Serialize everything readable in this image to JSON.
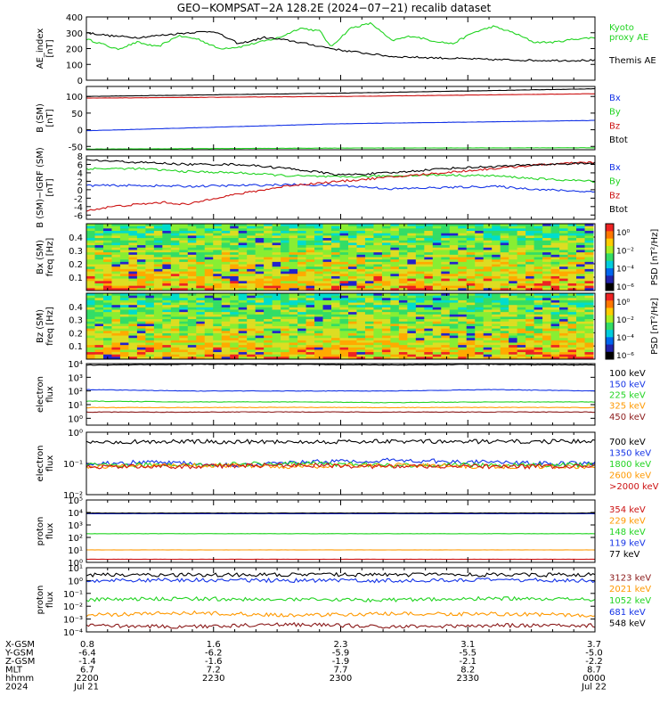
{
  "title": "GEO−KOMPSAT−2A 128.2E (2024−07−21) recalib dataset",
  "colors": {
    "black": "#000000",
    "green": "#22d422",
    "blue": "#1433e6",
    "red": "#cc1111",
    "orange": "#ff9900",
    "darkred": "#8b1a1a",
    "bright_green": "#33dd33"
  },
  "chart_data": [
    {
      "type": "line",
      "id": "ae",
      "ylabel": [
        "AE_index",
        "[nT]"
      ],
      "ylim": [
        0,
        400
      ],
      "yticks": [
        {
          "v": 0,
          "t": "0"
        },
        {
          "v": 100,
          "t": "100"
        },
        {
          "v": 200,
          "t": "200"
        },
        {
          "v": 300,
          "t": "300"
        },
        {
          "v": 400,
          "t": "400"
        }
      ],
      "series": [
        {
          "name": "Kyoto",
          "label_lines": [
            "Kyoto",
            "proxy AE"
          ],
          "color": "#22d422",
          "x": [
            0,
            0.03,
            0.06,
            0.1,
            0.14,
            0.18,
            0.22,
            0.26,
            0.3,
            0.34,
            0.38,
            0.42,
            0.46,
            0.48,
            0.52,
            0.56,
            0.6,
            0.64,
            0.68,
            0.72,
            0.76,
            0.8,
            0.84,
            0.88,
            0.92,
            0.96,
            1.0
          ],
          "y": [
            260,
            230,
            195,
            240,
            210,
            280,
            260,
            200,
            210,
            240,
            270,
            330,
            310,
            210,
            330,
            360,
            250,
            280,
            250,
            230,
            300,
            340,
            300,
            240,
            240,
            260,
            270
          ]
        },
        {
          "name": "Themis AE",
          "label_lines": [
            "Themis AE"
          ],
          "color": "#000000",
          "x": [
            0,
            0.05,
            0.1,
            0.2,
            0.25,
            0.3,
            0.35,
            0.4,
            0.45,
            0.5,
            0.55,
            0.6,
            0.7,
            0.8,
            0.9,
            1.0
          ],
          "y": [
            300,
            280,
            270,
            300,
            310,
            230,
            270,
            250,
            220,
            190,
            170,
            150,
            140,
            130,
            125,
            125
          ]
        }
      ]
    },
    {
      "type": "line",
      "id": "bsm",
      "ylabel": [
        "B (SM)",
        "[nT]"
      ],
      "ylim": [
        -60,
        130
      ],
      "yticks": [
        {
          "v": -50,
          "t": "-50"
        },
        {
          "v": 0,
          "t": "0"
        },
        {
          "v": 50,
          "t": "50"
        },
        {
          "v": 100,
          "t": "100"
        }
      ],
      "series": [
        {
          "name": "Bx",
          "color": "#1433e6",
          "x": [
            0,
            0.5,
            1.0
          ],
          "y": [
            -3,
            18,
            28
          ]
        },
        {
          "name": "By",
          "color": "#22d422",
          "x": [
            0,
            0.5,
            1.0
          ],
          "y": [
            -58,
            -55,
            -54
          ]
        },
        {
          "name": "Bz",
          "color": "#cc1111",
          "x": [
            0,
            0.5,
            1.0
          ],
          "y": [
            95,
            100,
            108
          ]
        },
        {
          "name": "Btot",
          "color": "#000000",
          "x": [
            0,
            0.5,
            1.0
          ],
          "y": [
            100,
            110,
            123
          ]
        }
      ]
    },
    {
      "type": "line",
      "id": "bigrf",
      "ylabel": [
        "B (SM)−IGRF (SM)",
        "[nT]"
      ],
      "ylim": [
        -7,
        8
      ],
      "yticks": [
        {
          "v": -6,
          "t": "-6"
        },
        {
          "v": -4,
          "t": "-4"
        },
        {
          "v": -2,
          "t": "-2"
        },
        {
          "v": 0,
          "t": "0"
        },
        {
          "v": 2,
          "t": "2"
        },
        {
          "v": 4,
          "t": "4"
        },
        {
          "v": 6,
          "t": "6"
        },
        {
          "v": 8,
          "t": "8"
        }
      ],
      "series": [
        {
          "name": "Bx",
          "color": "#1433e6",
          "x": [
            0,
            0.1,
            0.2,
            0.3,
            0.4,
            0.5,
            0.6,
            0.7,
            0.8,
            0.9,
            1.0
          ],
          "y": [
            1,
            1,
            0.8,
            1,
            1.2,
            1,
            0.2,
            0.5,
            0.8,
            0,
            -0.5
          ]
        },
        {
          "name": "By",
          "color": "#22d422",
          "x": [
            0,
            0.1,
            0.2,
            0.3,
            0.4,
            0.5,
            0.6,
            0.7,
            0.8,
            0.9,
            1.0
          ],
          "y": [
            5,
            5,
            4.3,
            4,
            3.3,
            3,
            3.3,
            3.5,
            3.3,
            2.5,
            2
          ]
        },
        {
          "name": "Bz",
          "color": "#cc1111",
          "x": [
            0,
            0.05,
            0.1,
            0.15,
            0.2,
            0.25,
            0.3,
            0.35,
            0.4,
            0.5,
            0.6,
            0.7,
            0.8,
            0.9,
            1.0
          ],
          "y": [
            -5,
            -4,
            -3.5,
            -3,
            -3.5,
            -2,
            -1,
            0,
            1,
            2,
            3,
            4,
            5,
            6,
            6.5
          ]
        },
        {
          "name": "Btot",
          "color": "#000000",
          "x": [
            0,
            0.1,
            0.2,
            0.3,
            0.4,
            0.5,
            0.6,
            0.7,
            0.8,
            0.9,
            1.0
          ],
          "y": [
            7,
            6.5,
            6,
            6,
            5,
            3.5,
            4,
            5,
            5.5,
            6,
            6.3
          ]
        }
      ]
    },
    {
      "type": "heatmap",
      "id": "bxspec",
      "ylabel": [
        "Bx (SM)",
        "freq [Hz]"
      ],
      "ylim": [
        0,
        0.5
      ],
      "yticks": [
        {
          "v": 0.1,
          "t": "0.1"
        },
        {
          "v": 0.2,
          "t": "0.2"
        },
        {
          "v": 0.3,
          "t": "0.3"
        },
        {
          "v": 0.4,
          "t": "0.4"
        }
      ],
      "colorbar_label": "PSD [nT²/Hz]",
      "colorbar_ticks": [
        "10⁰",
        "10⁻²",
        "10⁻⁴",
        "10⁻⁶"
      ]
    },
    {
      "type": "heatmap",
      "id": "bzspec",
      "ylabel": [
        "Bz (SM)",
        "freq [Hz]"
      ],
      "ylim": [
        0,
        0.5
      ],
      "yticks": [
        {
          "v": 0.1,
          "t": "0.1"
        },
        {
          "v": 0.2,
          "t": "0.2"
        },
        {
          "v": 0.3,
          "t": "0.3"
        },
        {
          "v": 0.4,
          "t": "0.4"
        }
      ],
      "colorbar_label": "PSD [nT²/Hz]",
      "colorbar_ticks": [
        "10⁰",
        "10⁻²",
        "10⁻⁴",
        "10⁻⁶"
      ]
    },
    {
      "type": "line",
      "id": "eflux1",
      "log": true,
      "ylabel": [
        "electron",
        "flux"
      ],
      "ylim": [
        -0.5,
        4
      ],
      "yticks": [
        {
          "v": 0,
          "t": "10⁰"
        },
        {
          "v": 1,
          "t": "10¹"
        },
        {
          "v": 2,
          "t": "10²"
        },
        {
          "v": 3,
          "t": "10³"
        },
        {
          "v": 4,
          "t": "10⁴"
        }
      ],
      "series": [
        {
          "name": "100 keV",
          "color": "#000000",
          "x": [
            0,
            0.2,
            0.4,
            0.6,
            0.8,
            1.0
          ],
          "y": [
            3.9,
            3.95,
            3.95,
            3.9,
            3.95,
            3.9
          ]
        },
        {
          "name": "150 keV",
          "color": "#1433e6",
          "x": [
            0,
            0.2,
            0.4,
            0.6,
            0.8,
            1.0
          ],
          "y": [
            2.1,
            2.0,
            2.0,
            2.0,
            2.1,
            2.0
          ]
        },
        {
          "name": "225 keV",
          "color": "#22d422",
          "x": [
            0,
            0.2,
            0.4,
            0.6,
            0.8,
            1.0
          ],
          "y": [
            1.25,
            1.2,
            1.2,
            1.15,
            1.2,
            1.2
          ]
        },
        {
          "name": "325 keV",
          "color": "#ff9900",
          "x": [
            0,
            0.2,
            0.4,
            0.6,
            0.8,
            1.0
          ],
          "y": [
            0.78,
            0.78,
            0.8,
            0.78,
            0.8,
            0.78
          ]
        },
        {
          "name": "450 keV",
          "color": "#8b1a1a",
          "x": [
            0,
            0.2,
            0.4,
            0.6,
            0.8,
            1.0
          ],
          "y": [
            0.45,
            0.45,
            0.47,
            0.45,
            0.46,
            0.45
          ]
        }
      ]
    },
    {
      "type": "line",
      "id": "eflux2",
      "log": true,
      "ylabel": [
        "electron",
        "flux"
      ],
      "ylim": [
        -2,
        0
      ],
      "yticks": [
        {
          "v": -2,
          "t": "10⁻²"
        },
        {
          "v": -1,
          "t": "10⁻¹"
        },
        {
          "v": 0,
          "t": "10⁰"
        }
      ],
      "series": [
        {
          "name": "700 keV",
          "color": "#000000",
          "x": [
            0,
            0.2,
            0.4,
            0.6,
            0.8,
            1.0
          ],
          "y": [
            -0.3,
            -0.3,
            -0.3,
            -0.3,
            -0.3,
            -0.3
          ]
        },
        {
          "name": "1350 keV",
          "color": "#1433e6",
          "x": [
            0,
            0.15,
            0.3,
            0.45,
            0.6,
            0.75,
            0.9,
            1.0
          ],
          "y": [
            -1.0,
            -0.95,
            -1.05,
            -0.95,
            -0.9,
            -0.95,
            -1.0,
            -1.0
          ]
        },
        {
          "name": "1800 keV",
          "color": "#22d422",
          "x": [
            0,
            0.2,
            0.4,
            0.6,
            0.8,
            1.0
          ],
          "y": [
            -1.05,
            -1.05,
            -1.0,
            -1.05,
            -1.05,
            -1.05
          ]
        },
        {
          "name": "2600 keV",
          "color": "#ff9900",
          "x": [
            0,
            0.2,
            0.4,
            0.6,
            0.8,
            1.0
          ],
          "y": [
            -1.1,
            -1.05,
            -1.1,
            -1.05,
            -1.1,
            -1.1
          ]
        },
        {
          "name": ">2000 keV",
          "color": "#cc1111",
          "x": [
            0,
            0.2,
            0.4,
            0.6,
            0.8,
            1.0
          ],
          "y": [
            -1.1,
            -1.1,
            -1.05,
            -1.1,
            -1.1,
            -1.1
          ]
        }
      ]
    },
    {
      "type": "line",
      "id": "pflux1",
      "log": true,
      "ylabel": [
        "proton",
        "flux"
      ],
      "ylim": [
        0,
        5
      ],
      "yticks": [
        {
          "v": 0,
          "t": "10⁰"
        },
        {
          "v": 1,
          "t": "10¹"
        },
        {
          "v": 2,
          "t": "10²"
        },
        {
          "v": 3,
          "t": "10³"
        },
        {
          "v": 4,
          "t": "10⁴"
        },
        {
          "v": 5,
          "t": "10⁵"
        }
      ],
      "series": [
        {
          "name": "354 keV",
          "color": "#cc1111",
          "x": [
            0,
            0.5,
            1.0
          ],
          "y": [
            0.25,
            0.25,
            0.25
          ]
        },
        {
          "name": "229 keV",
          "color": "#ff9900",
          "x": [
            0,
            0.5,
            1.0
          ],
          "y": [
            1.0,
            1.0,
            1.0
          ]
        },
        {
          "name": "148 keV",
          "color": "#22d422",
          "x": [
            0,
            0.5,
            1.0
          ],
          "y": [
            2.3,
            2.3,
            2.3
          ]
        },
        {
          "name": "119 keV",
          "color": "#1433e6",
          "x": [
            0,
            0.5,
            1.0
          ],
          "y": [
            3.9,
            3.9,
            3.9
          ]
        },
        {
          "name": "77 keV",
          "color": "#000000",
          "x": [
            0,
            0.5,
            1.0
          ],
          "y": [
            3.95,
            3.95,
            3.95
          ]
        }
      ]
    },
    {
      "type": "line",
      "id": "pflux2",
      "log": true,
      "ylabel": [
        "proton",
        "flux"
      ],
      "ylim": [
        -4,
        1
      ],
      "yticks": [
        {
          "v": -4,
          "t": "10⁻⁴"
        },
        {
          "v": -3,
          "t": "10⁻³"
        },
        {
          "v": -2,
          "t": "10⁻²"
        },
        {
          "v": -1,
          "t": "10⁻¹"
        },
        {
          "v": 0,
          "t": "10⁰"
        },
        {
          "v": 1,
          "t": "10¹"
        }
      ],
      "series": [
        {
          "name": "3123 keV",
          "color": "#8b1a1a",
          "x": [
            0,
            0.2,
            0.4,
            0.6,
            0.8,
            1.0
          ],
          "y": [
            -3.5,
            -3.6,
            -3.4,
            -3.6,
            -3.5,
            -3.5
          ]
        },
        {
          "name": "2021 keV",
          "color": "#ff9900",
          "x": [
            0,
            0.2,
            0.4,
            0.6,
            0.8,
            1.0
          ],
          "y": [
            -2.7,
            -2.5,
            -2.7,
            -2.6,
            -2.6,
            -2.7
          ]
        },
        {
          "name": "1052 keV",
          "color": "#22d422",
          "x": [
            0,
            0.2,
            0.4,
            0.6,
            0.8,
            1.0
          ],
          "y": [
            -1.5,
            -1.4,
            -1.5,
            -1.5,
            -1.4,
            -1.5
          ]
        },
        {
          "name": "681 keV",
          "color": "#1433e6",
          "x": [
            0,
            0.2,
            0.4,
            0.6,
            0.8,
            1.0
          ],
          "y": [
            0.0,
            0.05,
            0.0,
            0.0,
            0.05,
            0.0
          ]
        },
        {
          "name": "548 keV",
          "color": "#000000",
          "x": [
            0,
            0.2,
            0.4,
            0.6,
            0.8,
            1.0
          ],
          "y": [
            0.45,
            0.45,
            0.45,
            0.45,
            0.45,
            0.45
          ]
        }
      ]
    }
  ],
  "xaxis": {
    "row_labels": [
      "X-GSM",
      "Y-GSM",
      "Z-GSM",
      "MLT",
      "hhmm",
      "2024"
    ],
    "ticks": [
      {
        "rows": [
          "0.8",
          "-6.4",
          "-1.4",
          "6.7",
          "2200",
          "Jul 21"
        ]
      },
      {
        "rows": [
          "1.6",
          "-6.2",
          "-1.6",
          "7.2",
          "2230",
          ""
        ]
      },
      {
        "rows": [
          "2.3",
          "-5.9",
          "-1.9",
          "7.7",
          "2300",
          ""
        ]
      },
      {
        "rows": [
          "3.1",
          "-5.5",
          "-2.1",
          "8.2",
          "2330",
          ""
        ]
      },
      {
        "rows": [
          "3.7",
          "-5.0",
          "-2.2",
          "8.7",
          "0000",
          "Jul 22"
        ]
      }
    ]
  }
}
